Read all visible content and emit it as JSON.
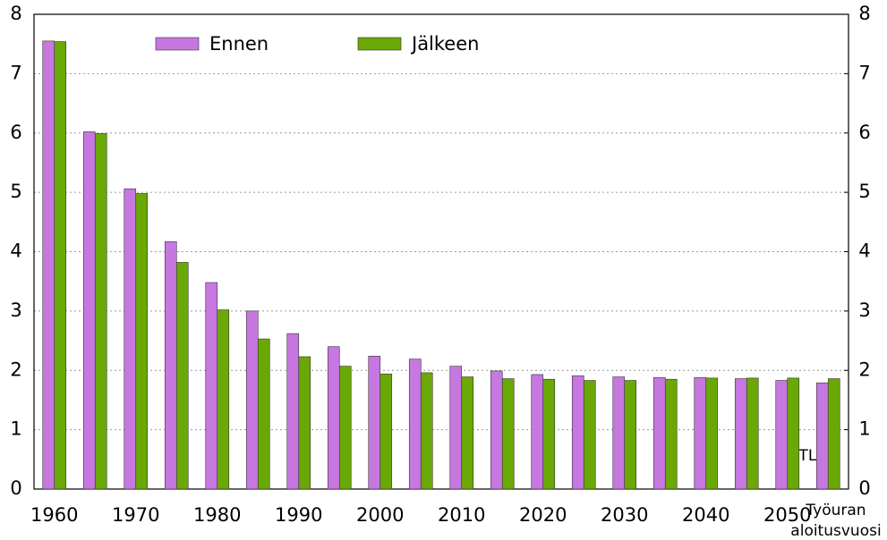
{
  "chart_data": {
    "type": "bar",
    "categories": [
      "1960",
      null,
      "1970",
      null,
      "1980",
      null,
      "1990",
      null,
      "2000",
      null,
      "2010",
      null,
      "2020",
      null,
      "2030",
      null,
      "2040",
      null,
      "2050",
      null
    ],
    "series": [
      {
        "name": "Ennen",
        "color": "#c777e0",
        "values": [
          7.55,
          6.02,
          5.06,
          4.17,
          3.48,
          3.0,
          2.62,
          2.4,
          2.24,
          2.19,
          2.07,
          1.99,
          1.93,
          1.91,
          1.89,
          1.88,
          1.88,
          1.86,
          1.83,
          1.79
        ]
      },
      {
        "name": "Jälkeen",
        "color": "#6aa806",
        "values": [
          7.54,
          5.99,
          4.98,
          3.82,
          3.02,
          2.53,
          2.23,
          2.07,
          1.94,
          1.96,
          1.89,
          1.86,
          1.85,
          1.83,
          1.83,
          1.85,
          1.87,
          1.87,
          1.87,
          1.86
        ]
      }
    ],
    "ylim": [
      0,
      8
    ],
    "yticks": [
      0,
      1,
      2,
      3,
      4,
      5,
      6,
      7,
      8
    ],
    "y2lim": [
      0,
      8
    ],
    "y2ticks": [
      0,
      1,
      2,
      3,
      4,
      5,
      6,
      7,
      8
    ],
    "grid": true,
    "x_label_lines": [
      "Työuran",
      "aloitusvuosi"
    ],
    "annotation": "ETLA"
  }
}
